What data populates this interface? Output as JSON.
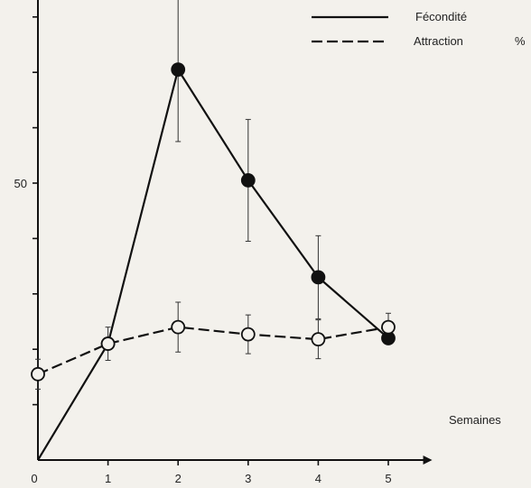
{
  "chart_data": {
    "type": "line",
    "title": "",
    "xlabel": "Semaines",
    "ylabel": "",
    "unit": "%",
    "x": [
      0,
      1,
      2,
      3,
      4,
      5
    ],
    "x_tick_labels": [
      "0",
      "1",
      "2",
      "3",
      "4",
      "5"
    ],
    "xlim": [
      0,
      5.6
    ],
    "ylim": [
      0,
      97
    ],
    "y_ticks": [
      10,
      20,
      30,
      40,
      50,
      60,
      70,
      80,
      90
    ],
    "y_tick_labels": [
      "50"
    ],
    "y_labeled_tick": 50,
    "grid": false,
    "legend_position": "top-right",
    "series": [
      {
        "name": "Fécondité",
        "style": "solid",
        "marker": "filled-circle",
        "color": "#111111",
        "x": [
          0,
          1,
          2,
          3,
          4,
          5
        ],
        "y": [
          0,
          21,
          70.5,
          50.5,
          33,
          22
        ],
        "error": [
          0,
          0,
          13,
          11,
          7.5,
          0
        ]
      },
      {
        "name": "Attraction",
        "style": "dashed",
        "marker": "open-circle",
        "color": "#111111",
        "x": [
          0,
          1,
          2,
          3,
          4,
          5
        ],
        "y": [
          15.5,
          21,
          24,
          22.7,
          21.8,
          24
        ],
        "error": [
          2.7,
          3,
          4.5,
          3.5,
          3.5,
          2.5
        ]
      }
    ]
  }
}
